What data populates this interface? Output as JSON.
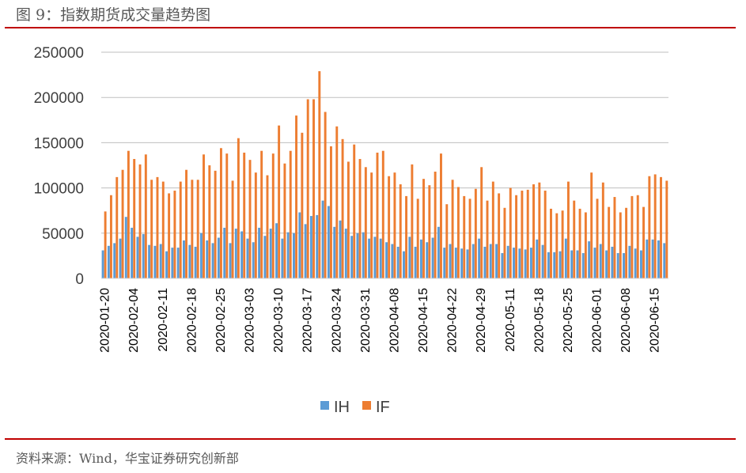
{
  "figure": {
    "title": "图 9：指数期货成交量趋势图",
    "source": "资料来源：Wind，华宝证券研究创新部"
  },
  "colors": {
    "IH": "#5b9bd5",
    "IF": "#ed7d31",
    "grid": "#bfbfbf",
    "rule": "#c00000"
  },
  "chart_data": {
    "type": "bar",
    "title": "",
    "xlabel": "",
    "ylabel": "",
    "ylim": [
      0,
      250000
    ],
    "yticks": [
      0,
      50000,
      100000,
      150000,
      200000,
      250000
    ],
    "grid": "horizontal",
    "legend": "bottom",
    "x_tick_labels": [
      "2020-01-20",
      "2020-02-04",
      "2020-02-11",
      "2020-02-18",
      "2020-02-25",
      "2020-03-03",
      "2020-03-10",
      "2020-03-17",
      "2020-03-24",
      "2020-03-31",
      "2020-04-08",
      "2020-04-15",
      "2020-04-22",
      "2020-04-29",
      "2020-05-11",
      "2020-05-18",
      "2020-05-25",
      "2020-06-01",
      "2020-06-08",
      "2020-06-15"
    ],
    "categories": [
      "2020-01-20",
      "2020-01-21",
      "2020-01-22",
      "2020-01-23",
      "2020-02-03",
      "2020-02-04",
      "2020-02-05",
      "2020-02-06",
      "2020-02-07",
      "2020-02-10",
      "2020-02-11",
      "2020-02-12",
      "2020-02-13",
      "2020-02-14",
      "2020-02-17",
      "2020-02-18",
      "2020-02-19",
      "2020-02-20",
      "2020-02-21",
      "2020-02-24",
      "2020-02-25",
      "2020-02-26",
      "2020-02-27",
      "2020-02-28",
      "2020-03-02",
      "2020-03-03",
      "2020-03-04",
      "2020-03-05",
      "2020-03-06",
      "2020-03-09",
      "2020-03-10",
      "2020-03-11",
      "2020-03-12",
      "2020-03-13",
      "2020-03-16",
      "2020-03-17",
      "2020-03-18",
      "2020-03-19",
      "2020-03-20",
      "2020-03-23",
      "2020-03-24",
      "2020-03-25",
      "2020-03-26",
      "2020-03-27",
      "2020-03-30",
      "2020-03-31",
      "2020-04-01",
      "2020-04-02",
      "2020-04-03",
      "2020-04-07",
      "2020-04-08",
      "2020-04-09",
      "2020-04-10",
      "2020-04-13",
      "2020-04-14",
      "2020-04-15",
      "2020-04-16",
      "2020-04-17",
      "2020-04-20",
      "2020-04-21",
      "2020-04-22",
      "2020-04-23",
      "2020-04-24",
      "2020-04-27",
      "2020-04-28",
      "2020-04-29",
      "2020-04-30",
      "2020-05-06",
      "2020-05-07",
      "2020-05-08",
      "2020-05-11",
      "2020-05-12",
      "2020-05-13",
      "2020-05-14",
      "2020-05-15",
      "2020-05-18",
      "2020-05-19",
      "2020-05-20",
      "2020-05-21",
      "2020-05-22",
      "2020-05-25",
      "2020-05-26",
      "2020-05-27",
      "2020-05-28",
      "2020-05-29",
      "2020-06-01",
      "2020-06-02",
      "2020-06-03",
      "2020-06-04",
      "2020-06-05",
      "2020-06-08",
      "2020-06-09",
      "2020-06-10",
      "2020-06-11",
      "2020-06-12",
      "2020-06-15",
      "2020-06-16",
      "2020-06-17"
    ],
    "series": [
      {
        "name": "IH",
        "values": [
          31000,
          36000,
          39000,
          44000,
          68000,
          56000,
          46000,
          49000,
          37000,
          36000,
          38000,
          30000,
          34000,
          34000,
          42000,
          37000,
          35000,
          50000,
          42000,
          39000,
          45000,
          56000,
          39000,
          55000,
          52000,
          44000,
          40000,
          56000,
          47000,
          55000,
          61000,
          44000,
          51000,
          50000,
          73000,
          60000,
          69000,
          70000,
          86000,
          80000,
          57000,
          64000,
          55000,
          47000,
          50000,
          51000,
          44000,
          46000,
          44000,
          40000,
          38000,
          35000,
          30000,
          46000,
          35000,
          43000,
          40000,
          45000,
          57000,
          34000,
          38000,
          34000,
          33000,
          32000,
          38000,
          44000,
          35000,
          38000,
          38000,
          28000,
          36000,
          34000,
          33000,
          32000,
          34000,
          43000,
          37000,
          29000,
          29000,
          30000,
          44000,
          31000,
          31000,
          28000,
          41000,
          34000,
          38000,
          31000,
          35000,
          28000,
          28000,
          36000,
          33000,
          31000,
          43000,
          43000,
          42000,
          39000
        ]
      },
      {
        "name": "IF",
        "values": [
          74000,
          92000,
          112000,
          120000,
          141000,
          132000,
          126000,
          137000,
          109000,
          112000,
          107000,
          94000,
          97000,
          107000,
          120000,
          109000,
          109000,
          137000,
          125000,
          119000,
          144000,
          138000,
          108000,
          155000,
          139000,
          131000,
          117000,
          141000,
          114000,
          138000,
          169000,
          127000,
          141000,
          180000,
          161000,
          198000,
          198000,
          229000,
          184000,
          146000,
          168000,
          154000,
          129000,
          148000,
          132000,
          123000,
          117000,
          139000,
          141000,
          113000,
          117000,
          104000,
          91000,
          126000,
          88000,
          110000,
          103000,
          118000,
          138000,
          82000,
          109000,
          101000,
          91000,
          88000,
          99000,
          123000,
          86000,
          107000,
          94000,
          78000,
          100000,
          92000,
          97000,
          98000,
          104000,
          106000,
          97000,
          77000,
          72000,
          75000,
          107000,
          86000,
          77000,
          73000,
          117000,
          88000,
          106000,
          79000,
          90000,
          73000,
          78000,
          91000,
          92000,
          79000,
          113000,
          115000,
          112000,
          108000
        ]
      }
    ]
  }
}
